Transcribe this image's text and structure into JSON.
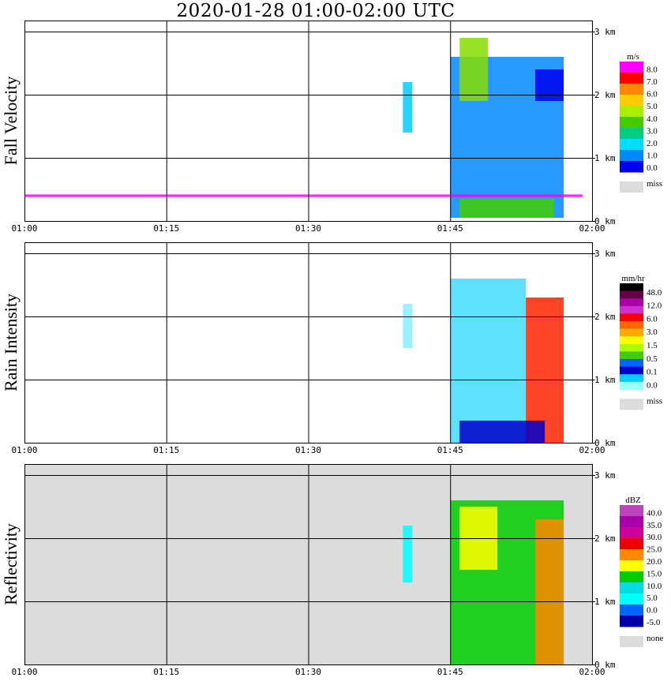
{
  "title": "2020-01-28   01:00-02:00 UTC",
  "chart_data": [
    {
      "type": "heatmap",
      "ylabel": "Fall Velocity",
      "x_ticks": [
        "01:00",
        "01:15",
        "01:30",
        "01:45",
        "02:00"
      ],
      "y_ticks": [
        "0 km",
        "1 km",
        "2 km",
        "3 km"
      ],
      "xlim": [
        "01:00",
        "02:00"
      ],
      "ylim_km": [
        0,
        3.2
      ],
      "grid": true,
      "background": "#ffffff",
      "colorbar": {
        "unit": "m/s",
        "labels": [
          "8.0",
          "7.0",
          "6.0",
          "5.0",
          "4.0",
          "3.0",
          "2.0",
          "1.0",
          "0.0"
        ],
        "colors": [
          "#ff00ff",
          "#ff0000",
          "#ff8800",
          "#ffcc00",
          "#aaee00",
          "#44cc00",
          "#00cc88",
          "#00ddff",
          "#0088ff",
          "#0000ee"
        ],
        "missing_label": "miss",
        "missing_color": "#dcdcdc"
      },
      "echoes": [
        {
          "x": [
            "01:45",
            "01:57"
          ],
          "y_km": [
            0.05,
            2.6
          ],
          "value": "1.0-3.0 m/s",
          "color": "#0088ff"
        },
        {
          "x": [
            "01:46",
            "01:49"
          ],
          "y_km": [
            1.9,
            2.9
          ],
          "value": "3.0-5.0 m/s",
          "color": "#88dd00"
        },
        {
          "x": [
            "01:54",
            "01:57"
          ],
          "y_km": [
            1.9,
            2.4
          ],
          "value": "0.0-1.0 m/s",
          "color": "#0000ee"
        },
        {
          "x": [
            "01:46",
            "01:56"
          ],
          "y_km": [
            0.05,
            0.35
          ],
          "value": "3.0-5.0 m/s",
          "color": "#44cc00"
        },
        {
          "x": [
            "01:00",
            "01:59"
          ],
          "y_km": [
            0.38,
            0.42
          ],
          "value": "8.0 m/s",
          "color": "#ff00ff"
        },
        {
          "x": [
            "01:40",
            "01:41"
          ],
          "y_km": [
            1.4,
            2.2
          ],
          "value": "1.0-3.0 m/s",
          "color": "#00ccff"
        }
      ]
    },
    {
      "type": "heatmap",
      "ylabel": "Rain Intensity",
      "x_ticks": [
        "01:00",
        "01:15",
        "01:30",
        "01:45",
        "02:00"
      ],
      "y_ticks": [
        "0 km",
        "1 km",
        "2 km",
        "3 km"
      ],
      "xlim": [
        "01:00",
        "02:00"
      ],
      "ylim_km": [
        0,
        3.2
      ],
      "grid": true,
      "background": "#ffffff",
      "colorbar": {
        "unit": "mm/hr",
        "labels": [
          "48.0",
          "12.0",
          "6.0",
          "3.0",
          "1.5",
          "0.5",
          "0.1",
          "0.0"
        ],
        "colors": [
          "#000000",
          "#660044",
          "#aa00aa",
          "#cc33cc",
          "#ff0000",
          "#ff6600",
          "#ffaa00",
          "#ffff00",
          "#aaff00",
          "#44cc00",
          "#0066ff",
          "#0000cc",
          "#00ccff",
          "#99ffff"
        ],
        "missing_label": "miss",
        "missing_color": "#dcdcdc"
      },
      "echoes": [
        {
          "x": [
            "01:45",
            "01:53"
          ],
          "y_km": [
            0.0,
            2.6
          ],
          "value": "0.1-0.5 mm/hr",
          "color": "#44ddff"
        },
        {
          "x": [
            "01:53",
            "01:57"
          ],
          "y_km": [
            0.0,
            2.3
          ],
          "value": "1.5-12.0 mm/hr",
          "color": "#ff2200"
        },
        {
          "x": [
            "01:46",
            "01:55"
          ],
          "y_km": [
            0.0,
            0.35
          ],
          "value": "0.5-1.5 mm/hr",
          "color": "#0000cc"
        },
        {
          "x": [
            "01:40",
            "01:41"
          ],
          "y_km": [
            1.5,
            2.2
          ],
          "value": "0.1 mm/hr",
          "color": "#88eeff"
        }
      ]
    },
    {
      "type": "heatmap",
      "ylabel": "Reflectivity",
      "x_ticks": [
        "01:00",
        "01:15",
        "01:30",
        "01:45",
        "02:00"
      ],
      "y_ticks": [
        "0 km",
        "1 km",
        "2 km",
        "3 km"
      ],
      "xlim": [
        "01:00",
        "02:00"
      ],
      "ylim_km": [
        0,
        3.2
      ],
      "grid": true,
      "background": "#dcdcdc",
      "colorbar": {
        "unit": "dBZ",
        "labels": [
          "40.0",
          "35.0",
          "30.0",
          "25.0",
          "20.0",
          "15.0",
          "10.0",
          "5.0",
          "0.0",
          "-5.0"
        ],
        "colors": [
          "#bb44bb",
          "#aa00aa",
          "#cc0099",
          "#ee0000",
          "#ff8800",
          "#ffff00",
          "#00cc00",
          "#00dddd",
          "#00ffff",
          "#0066ff",
          "#0000aa"
        ],
        "missing_label": "none",
        "missing_color": "#dcdcdc"
      },
      "echoes": [
        {
          "x": [
            "01:45",
            "01:57"
          ],
          "y_km": [
            0.0,
            2.6
          ],
          "value": "10.0-20.0 dBZ",
          "color": "#00cc00"
        },
        {
          "x": [
            "01:46",
            "01:50"
          ],
          "y_km": [
            1.5,
            2.5
          ],
          "value": "20.0 dBZ",
          "color": "#ffff00"
        },
        {
          "x": [
            "01:54",
            "01:57"
          ],
          "y_km": [
            0.0,
            2.3
          ],
          "value": "20.0-25.0 dBZ",
          "color": "#ff8800"
        },
        {
          "x": [
            "01:40",
            "01:41"
          ],
          "y_km": [
            1.3,
            2.2
          ],
          "value": "5.0-10.0 dBZ",
          "color": "#00ffff"
        }
      ]
    }
  ]
}
